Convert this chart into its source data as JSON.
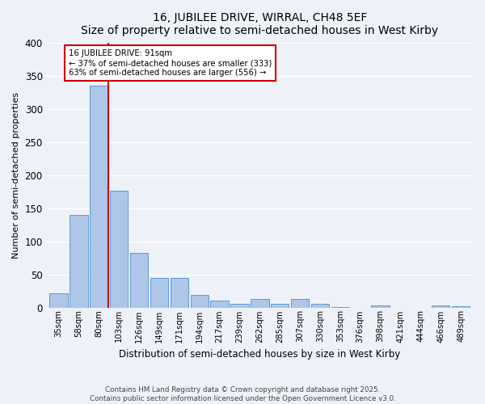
{
  "title": "16, JUBILEE DRIVE, WIRRAL, CH48 5EF",
  "subtitle": "Size of property relative to semi-detached houses in West Kirby",
  "xlabel": "Distribution of semi-detached houses by size in West Kirby",
  "ylabel": "Number of semi-detached properties",
  "bin_labels": [
    "35sqm",
    "58sqm",
    "80sqm",
    "103sqm",
    "126sqm",
    "149sqm",
    "171sqm",
    "194sqm",
    "217sqm",
    "239sqm",
    "262sqm",
    "285sqm",
    "307sqm",
    "330sqm",
    "353sqm",
    "376sqm",
    "398sqm",
    "421sqm",
    "444sqm",
    "466sqm",
    "489sqm"
  ],
  "bar_heights": [
    22,
    140,
    335,
    177,
    82,
    45,
    45,
    19,
    11,
    6,
    13,
    5,
    13,
    5,
    1,
    0,
    3,
    0,
    0,
    3,
    2
  ],
  "bar_color": "#aec6e8",
  "bar_edge_color": "#5b9bd5",
  "vline_x_bar_index": 2,
  "vline_color": "#cc0000",
  "annotation_title": "16 JUBILEE DRIVE: 91sqm",
  "annotation_line1": "← 37% of semi-detached houses are smaller (333)",
  "annotation_line2": "63% of semi-detached houses are larger (556) →",
  "annotation_box_edgecolor": "#cc0000",
  "ylim": [
    0,
    400
  ],
  "yticks": [
    0,
    50,
    100,
    150,
    200,
    250,
    300,
    350,
    400
  ],
  "footnote1": "Contains HM Land Registry data © Crown copyright and database right 2025.",
  "footnote2": "Contains public sector information licensed under the Open Government Licence v3.0.",
  "bg_color": "#eef2f8",
  "plot_bg_color": "#eef2f8"
}
